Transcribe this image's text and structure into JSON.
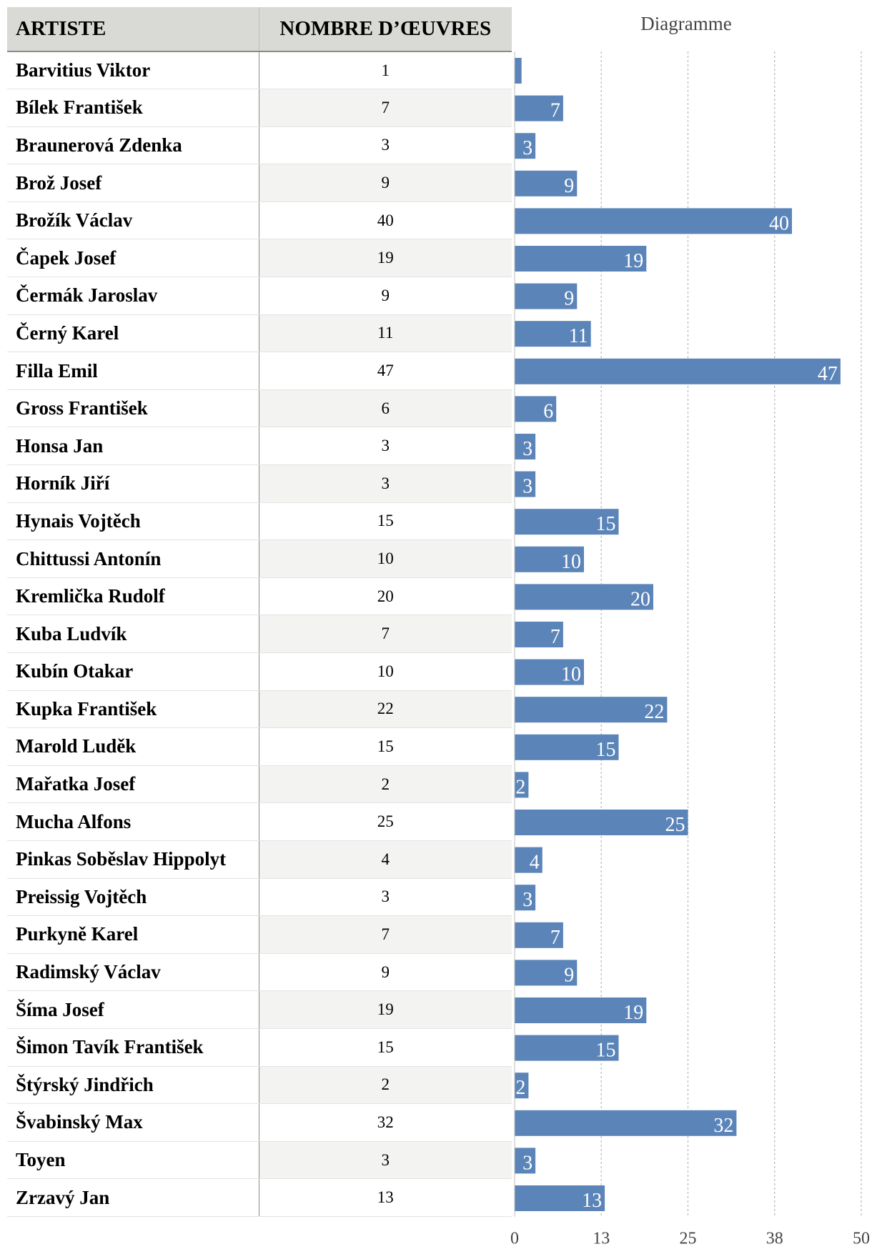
{
  "table": {
    "headers": [
      "ARTISTE",
      "NOMBRE D’ŒUVRES"
    ],
    "rows": [
      {
        "artist": "Barvitius Viktor",
        "count": "1"
      },
      {
        "artist": "Bílek František",
        "count": "7"
      },
      {
        "artist": "Braunerová Zdenka",
        "count": "3"
      },
      {
        "artist": "Brož Josef",
        "count": "9"
      },
      {
        "artist": "Brožík Václav",
        "count": "40"
      },
      {
        "artist": "Čapek Josef",
        "count": "19"
      },
      {
        "artist": "Čermák Jaroslav",
        "count": "9"
      },
      {
        "artist": "Černý Karel",
        "count": "11"
      },
      {
        "artist": "Filla Emil",
        "count": "47"
      },
      {
        "artist": "Gross František",
        "count": "6"
      },
      {
        "artist": "Honsa Jan",
        "count": "3"
      },
      {
        "artist": "Horník Jiří",
        "count": "3"
      },
      {
        "artist": "Hynais Vojtěch",
        "count": "15"
      },
      {
        "artist": "Chittussi Antonín",
        "count": "10"
      },
      {
        "artist": "Kremlička Rudolf",
        "count": "20"
      },
      {
        "artist": "Kuba Ludvík",
        "count": "7"
      },
      {
        "artist": "Kubín Otakar",
        "count": "10"
      },
      {
        "artist": "Kupka František",
        "count": "22"
      },
      {
        "artist": "Marold Luděk",
        "count": "15"
      },
      {
        "artist": "Mařatka Josef",
        "count": "2"
      },
      {
        "artist": "Mucha Alfons",
        "count": "25"
      },
      {
        "artist": "Pinkas Soběslav Hippolyt",
        "count": "4"
      },
      {
        "artist": "Preissig Vojtěch",
        "count": "3"
      },
      {
        "artist": "Purkyně Karel",
        "count": "7"
      },
      {
        "artist": "Radimský Václav",
        "count": "9"
      },
      {
        "artist": "Šíma Josef",
        "count": "19"
      },
      {
        "artist": "Šimon Tavík František",
        "count": "15"
      },
      {
        "artist": "Štýrský Jindřich",
        "count": "2"
      },
      {
        "artist": "Švabinský Max",
        "count": "32"
      },
      {
        "artist": "Toyen",
        "count": "3"
      },
      {
        "artist": "Zrzavý Jan",
        "count": "13"
      }
    ]
  },
  "chart_data": {
    "type": "bar",
    "orientation": "horizontal",
    "title": "Diagramme",
    "categories": [
      "Barvitius Viktor",
      "Bílek František",
      "Braunerová Zdenka",
      "Brož Josef",
      "Brožík Václav",
      "Čapek Josef",
      "Čermák Jaroslav",
      "Černý Karel",
      "Filla Emil",
      "Gross František",
      "Honsa Jan",
      "Horník Jiří",
      "Hynais Vojtěch",
      "Chittussi Antonín",
      "Kremlička Rudolf",
      "Kuba Ludvík",
      "Kubín Otakar",
      "Kupka František",
      "Marold Luděk",
      "Mařatka Josef",
      "Mucha Alfons",
      "Pinkas Soběslav Hippolyt",
      "Preissig Vojtěch",
      "Purkyně Karel",
      "Radimský Václav",
      "Šíma Josef",
      "Šimon Tavík František",
      "Štýrský Jindřich",
      "Švabinský Max",
      "Toyen",
      "Zrzavý Jan"
    ],
    "values": [
      1,
      7,
      3,
      9,
      40,
      19,
      9,
      11,
      47,
      6,
      3,
      3,
      15,
      10,
      20,
      7,
      10,
      22,
      15,
      2,
      25,
      4,
      3,
      7,
      9,
      19,
      15,
      2,
      32,
      3,
      13
    ],
    "data_labels": [
      "",
      "7",
      "3",
      "9",
      "40",
      "19",
      "9",
      "11",
      "47",
      "6",
      "3",
      "3",
      "15",
      "10",
      "20",
      "7",
      "10",
      "22",
      "15",
      "2",
      "25",
      "4",
      "3",
      "7",
      "9",
      "19",
      "15",
      "2",
      "32",
      "3",
      "13"
    ],
    "xlim": [
      0,
      50
    ],
    "xticks": [
      0,
      12.5,
      25,
      37.5,
      50
    ],
    "xtick_labels": [
      "0",
      "13",
      "25",
      "38",
      "50"
    ],
    "grid": true,
    "colors": {
      "bar": "#5b84b8",
      "grid": "#b8b8b8",
      "bar_label": "#ffffff"
    }
  }
}
